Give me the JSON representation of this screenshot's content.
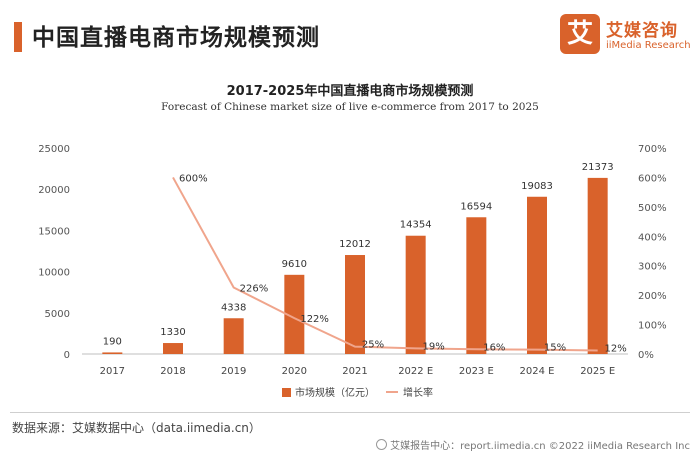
{
  "header": {
    "title": "中国直播电商市场规模预测"
  },
  "logo": {
    "mark": "艾",
    "name_cn": "艾媒咨询",
    "name_en": "iiMedia Research"
  },
  "chart_data": {
    "type": "bar",
    "title": "2017-2025年中国直播电商市场规模预测",
    "subtitle": "Forecast of Chinese market size of live e-commerce from 2017 to 2025",
    "categories": [
      "2017",
      "2018",
      "2019",
      "2020",
      "2021",
      "2022 E",
      "2023 E",
      "2024 E",
      "2025 E"
    ],
    "series": [
      {
        "name": "市场规模（亿元）",
        "type": "bar",
        "axis": "left",
        "color": "#d9622b",
        "values": [
          190,
          1330,
          4338,
          9610,
          12012,
          14354,
          16594,
          19083,
          21373
        ],
        "labels": [
          "190",
          "1330",
          "4338",
          "9610",
          "12012",
          "14354",
          "16594",
          "19083",
          "21373"
        ]
      },
      {
        "name": "增长率",
        "type": "line",
        "axis": "right",
        "color": "#f0a58c",
        "values": [
          null,
          600,
          226,
          122,
          25,
          19,
          16,
          15,
          12
        ],
        "labels": [
          "",
          "600%",
          "226%",
          "122%",
          "25%",
          "19%",
          "16%",
          "15%",
          "12%"
        ]
      }
    ],
    "y_left": {
      "min": 0,
      "max": 25000,
      "ticks": [
        "0",
        "5000",
        "10000",
        "15000",
        "20000",
        "25000"
      ]
    },
    "y_right": {
      "min": 0,
      "max": 700,
      "ticks": [
        "0%",
        "100%",
        "200%",
        "300%",
        "400%",
        "500%",
        "600%",
        "700%"
      ]
    },
    "legend": "bottom",
    "grid": false
  },
  "footer": {
    "source": "数据来源：艾媒数据中心（data.iimedia.cn）",
    "credit": "艾媒报告中心：report.iimedia.cn  ©2022  iiMedia Research  Inc"
  }
}
